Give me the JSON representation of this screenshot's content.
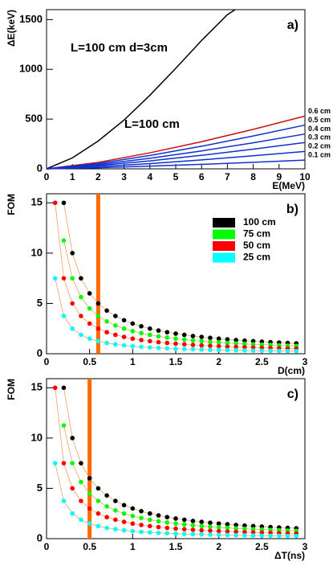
{
  "chart_data": [
    {
      "type": "line",
      "panel_label": "a)",
      "y_label": "ΔE(keV)",
      "x_label": "E(MeV)",
      "xlim": [
        0,
        10
      ],
      "xticks": [
        0,
        1,
        2,
        3,
        4,
        5,
        6,
        7,
        8,
        9,
        10
      ],
      "ylim": [
        0,
        1600
      ],
      "yticks": [
        0,
        500,
        1000,
        1500
      ],
      "annotations": [
        {
          "text": "L=100 cm d=3cm",
          "color": "#000000"
        },
        {
          "text": "L=100 cm",
          "color": "#1030e0"
        }
      ],
      "series": [
        {
          "color": "#000000",
          "x": [
            0,
            1,
            2,
            3,
            4,
            5,
            6,
            7,
            7.3
          ],
          "values": [
            0,
            110,
            280,
            490,
            740,
            1010,
            1290,
            1550,
            1600
          ]
        },
        {
          "name": "0.6 cm",
          "color": "#cc1010",
          "x": [
            0,
            2,
            4,
            6,
            8,
            10
          ],
          "values": [
            0,
            65,
            161,
            273,
            397,
            530
          ]
        },
        {
          "name": "0.5 cm",
          "color": "#1030d0",
          "x": [
            0,
            2,
            4,
            6,
            8,
            10
          ],
          "values": [
            0,
            54,
            134,
            227,
            330,
            440
          ]
        },
        {
          "name": "0.4 cm",
          "color": "#1030d0",
          "x": [
            0,
            2,
            4,
            6,
            8,
            10
          ],
          "values": [
            0,
            43,
            106,
            180,
            262,
            350
          ]
        },
        {
          "name": "0.3 cm",
          "color": "#1030d0",
          "x": [
            0,
            2,
            4,
            6,
            8,
            10
          ],
          "values": [
            0,
            33,
            80,
            136,
            198,
            265
          ]
        },
        {
          "name": "0.2 cm",
          "color": "#1030d0",
          "x": [
            0,
            2,
            4,
            6,
            8,
            10
          ],
          "values": [
            0,
            22,
            53,
            90,
            131,
            175
          ]
        },
        {
          "name": "0.1 cm",
          "color": "#1030d0",
          "x": [
            0,
            2,
            4,
            6,
            8,
            10
          ],
          "values": [
            0,
            11,
            27,
            45,
            66,
            88
          ]
        }
      ]
    },
    {
      "type": "scatter",
      "panel_label": "b)",
      "y_label": "FOM",
      "x_label": "D(cm)",
      "xlim": [
        0,
        3
      ],
      "xticks": [
        0,
        0.5,
        1,
        1.5,
        2,
        2.5,
        3
      ],
      "ylim": [
        0,
        15.9
      ],
      "yticks": [
        0,
        5,
        10,
        15
      ],
      "legend": true,
      "fit_color": "#f0a060",
      "marker_x": 0.6,
      "marker_color": "#ff6a00",
      "x": [
        0.1,
        0.2,
        0.3,
        0.4,
        0.5,
        0.6,
        0.7,
        0.8,
        0.9,
        1,
        1.1,
        1.2,
        1.3,
        1.4,
        1.5,
        1.6,
        1.7,
        1.8,
        1.9,
        2,
        2.1,
        2.2,
        2.3,
        2.4,
        2.5,
        2.6,
        2.7,
        2.8,
        2.9
      ],
      "series": [
        {
          "name": "100 cm",
          "color": "#000000",
          "values": [
            null,
            15,
            10,
            7.5,
            6,
            5,
            4.29,
            3.75,
            3.33,
            3,
            2.73,
            2.5,
            2.31,
            2.14,
            2,
            1.88,
            1.76,
            1.67,
            1.58,
            1.5,
            1.43,
            1.36,
            1.3,
            1.25,
            1.2,
            1.15,
            1.11,
            1.07,
            1.03
          ]
        },
        {
          "name": "75 cm",
          "color": "#00ff00",
          "values": [
            null,
            11.25,
            7.5,
            5.63,
            4.5,
            3.75,
            3.21,
            2.81,
            2.5,
            2.25,
            2.05,
            1.88,
            1.73,
            1.61,
            1.5,
            1.41,
            1.32,
            1.25,
            1.18,
            1.13,
            1.07,
            1.02,
            0.98,
            0.94,
            0.9,
            0.87,
            0.83,
            0.8,
            0.78
          ]
        },
        {
          "name": "50 cm",
          "color": "#ff0000",
          "values": [
            15,
            7.5,
            5,
            3.75,
            3,
            2.5,
            2.14,
            1.88,
            1.67,
            1.5,
            1.36,
            1.25,
            1.15,
            1.07,
            1,
            0.94,
            0.88,
            0.83,
            0.79,
            0.75,
            0.71,
            0.68,
            0.65,
            0.63,
            0.6,
            0.58,
            0.56,
            0.54,
            0.52
          ]
        },
        {
          "name": "25 cm",
          "color": "#00ffff",
          "values": [
            7.5,
            3.75,
            2.5,
            1.88,
            1.5,
            1.25,
            1.07,
            0.94,
            0.83,
            0.75,
            0.68,
            0.63,
            0.58,
            0.54,
            0.5,
            0.47,
            0.44,
            0.42,
            0.39,
            0.38,
            0.36,
            0.34,
            0.33,
            0.31,
            0.3,
            0.29,
            0.28,
            0.27,
            0.26
          ]
        }
      ]
    },
    {
      "type": "scatter",
      "panel_label": "c)",
      "y_label": "FOM",
      "x_label": "ΔT(ns)",
      "xlim": [
        0,
        3
      ],
      "xticks": [
        0,
        0.5,
        1,
        1.5,
        2,
        2.5,
        3
      ],
      "ylim": [
        0,
        15.9
      ],
      "yticks": [
        0,
        5,
        10,
        15
      ],
      "legend": false,
      "fit_color": "#f0a060",
      "marker_x": 0.5,
      "marker_color": "#ff6a00",
      "x": [
        0.1,
        0.2,
        0.3,
        0.4,
        0.5,
        0.6,
        0.7,
        0.8,
        0.9,
        1,
        1.1,
        1.2,
        1.3,
        1.4,
        1.5,
        1.6,
        1.7,
        1.8,
        1.9,
        2,
        2.1,
        2.2,
        2.3,
        2.4,
        2.5,
        2.6,
        2.7,
        2.8,
        2.9
      ],
      "series": [
        {
          "color": "#000000",
          "values": [
            null,
            15,
            10,
            7.5,
            6,
            5,
            4.29,
            3.75,
            3.33,
            3,
            2.73,
            2.5,
            2.31,
            2.14,
            2,
            1.88,
            1.76,
            1.67,
            1.58,
            1.5,
            1.43,
            1.36,
            1.3,
            1.25,
            1.2,
            1.15,
            1.11,
            1.07,
            1.03
          ]
        },
        {
          "color": "#00ff00",
          "values": [
            null,
            11.25,
            7.5,
            5.63,
            4.5,
            3.75,
            3.21,
            2.81,
            2.5,
            2.25,
            2.05,
            1.88,
            1.73,
            1.61,
            1.5,
            1.41,
            1.32,
            1.25,
            1.18,
            1.13,
            1.07,
            1.02,
            0.98,
            0.94,
            0.9,
            0.87,
            0.83,
            0.8,
            0.78
          ]
        },
        {
          "color": "#ff0000",
          "values": [
            15,
            7.5,
            5,
            3.75,
            3,
            2.5,
            2.14,
            1.88,
            1.67,
            1.5,
            1.36,
            1.25,
            1.15,
            1.07,
            1,
            0.94,
            0.88,
            0.83,
            0.79,
            0.75,
            0.71,
            0.68,
            0.65,
            0.63,
            0.6,
            0.58,
            0.56,
            0.54,
            0.52
          ]
        },
        {
          "color": "#00ffff",
          "values": [
            7.5,
            3.75,
            2.5,
            1.88,
            1.5,
            1.25,
            1.07,
            0.94,
            0.83,
            0.75,
            0.68,
            0.63,
            0.58,
            0.54,
            0.5,
            0.47,
            0.44,
            0.42,
            0.39,
            0.38,
            0.36,
            0.34,
            0.33,
            0.31,
            0.3,
            0.29,
            0.28,
            0.27,
            0.26
          ]
        }
      ]
    }
  ]
}
